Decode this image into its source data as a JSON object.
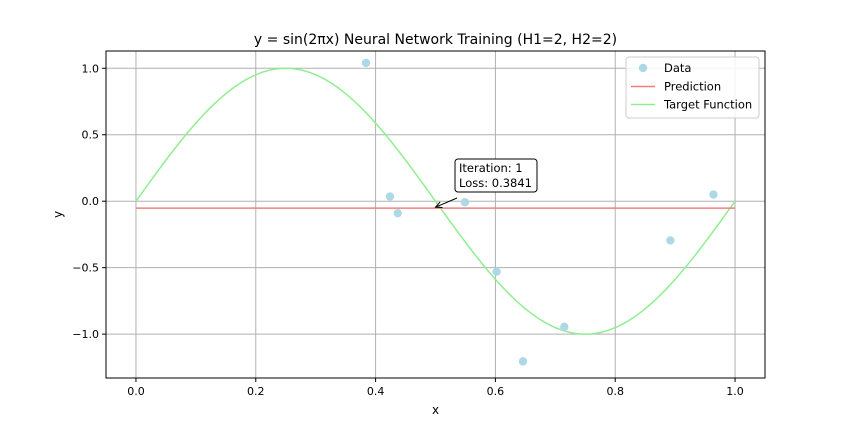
{
  "chart_data": {
    "type": "scatter",
    "title": "y = sin(2πx) Neural Network Training (H1=2, H2=2)",
    "xlabel": "x",
    "ylabel": "y",
    "xlim": [
      -0.05,
      1.05
    ],
    "ylim": [
      -1.33,
      1.13
    ],
    "xticks": [
      0.0,
      0.2,
      0.4,
      0.6,
      0.8,
      1.0
    ],
    "xtick_labels": [
      "0.0",
      "0.2",
      "0.4",
      "0.6",
      "0.8",
      "1.0"
    ],
    "yticks": [
      1.0,
      0.5,
      0.0,
      -0.5,
      -1.0
    ],
    "ytick_labels": [
      "1.0",
      "0.5",
      "0.0",
      "−0.5",
      "−1.0"
    ],
    "grid": true,
    "legend_position": "top-right",
    "series": [
      {
        "name": "Data",
        "kind": "scatter",
        "color": "#add8e6",
        "points": [
          {
            "x": 0.384,
            "y": 1.04
          },
          {
            "x": 0.424,
            "y": 0.035
          },
          {
            "x": 0.437,
            "y": -0.09
          },
          {
            "x": 0.549,
            "y": -0.008
          },
          {
            "x": 0.602,
            "y": -0.53
          },
          {
            "x": 0.646,
            "y": -1.205
          },
          {
            "x": 0.715,
            "y": -0.945
          },
          {
            "x": 0.892,
            "y": -0.295
          },
          {
            "x": 0.964,
            "y": 0.05
          }
        ]
      },
      {
        "name": "Prediction",
        "kind": "line",
        "color": "#f08080",
        "x": [
          0.0,
          1.0
        ],
        "y": [
          -0.052,
          -0.052
        ]
      },
      {
        "name": "Target Function",
        "kind": "function",
        "function": "sin(2*pi*x)",
        "color": "#90ee90",
        "x_range": [
          0.0,
          1.0
        ]
      }
    ],
    "annotation": {
      "lines": [
        "Iteration: 1",
        "Loss: 0.3841"
      ],
      "target": {
        "x": 0.5,
        "y": -0.045
      }
    }
  }
}
